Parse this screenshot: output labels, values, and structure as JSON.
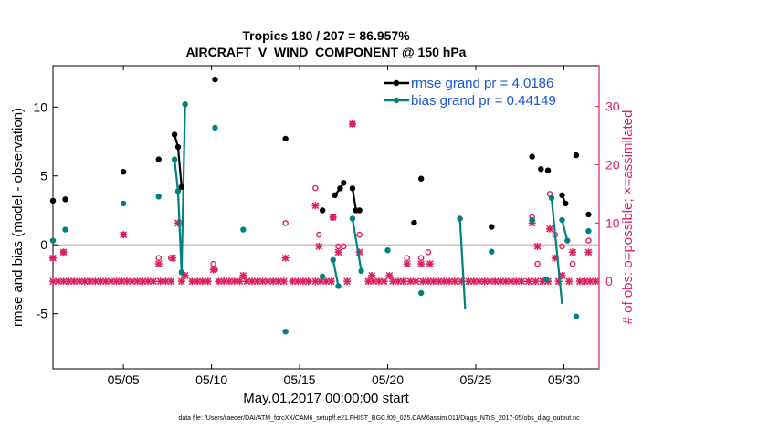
{
  "chart_data": {
    "type": "scatter",
    "title": "Tropics 180 / 207 = 86.957%",
    "subtitle": "AIRCRAFT_V_WIND_COMPONENT @ 150 hPa",
    "xlabel": "May.01,2017 00:00:00 start",
    "ylabel_left": "rmse and bias (model - observation)",
    "ylabel_right": "# of obs: o=possible; ×=assimilated",
    "footnote": "data file: /Users/raeder/DAI/ATM_forcXX/CAM6_setup/f.e21.FHIST_BGC.f09_025.CAM6assim.011/Diags_NTrS_2017-05/obs_diag_output.nc",
    "xlim": [
      1,
      32
    ],
    "ylim_left": [
      -9,
      13
    ],
    "ylim_right": [
      -15,
      37
    ],
    "grid": false,
    "legend_position": "top-right",
    "x_ticks": [
      5,
      10,
      15,
      20,
      25,
      30
    ],
    "x_tick_labels": [
      "05/05",
      "05/10",
      "05/15",
      "05/20",
      "05/25",
      "05/30"
    ],
    "y_left_ticks": [
      -5,
      0,
      5,
      10
    ],
    "y_right_ticks": [
      0,
      10,
      20,
      30
    ],
    "colors": {
      "rmse": "#000000",
      "bias": "#008080",
      "obs": "#e01e5a",
      "zero_line": "#c8a0a0"
    },
    "legend": [
      {
        "key": "rmse",
        "label": "rmse grand pr = 4.0186"
      },
      {
        "key": "bias",
        "label": "bias grand pr = 0.44149"
      }
    ],
    "rmse_points": [
      [
        1.0,
        3.2
      ],
      [
        1.7,
        3.3
      ],
      [
        5.0,
        5.3
      ],
      [
        7.0,
        6.2
      ],
      [
        7.9,
        8.0
      ],
      [
        8.1,
        7.1
      ],
      [
        8.3,
        4.2
      ],
      [
        10.2,
        12.0
      ],
      [
        14.2,
        7.7
      ],
      [
        16.3,
        2.5
      ],
      [
        17.0,
        3.6
      ],
      [
        17.3,
        4.1
      ],
      [
        17.5,
        4.5
      ],
      [
        18.0,
        4.1
      ],
      [
        18.2,
        2.5
      ],
      [
        18.4,
        2.5
      ],
      [
        21.5,
        1.6
      ],
      [
        21.9,
        4.8
      ],
      [
        25.9,
        1.3
      ],
      [
        28.2,
        6.4
      ],
      [
        28.7,
        5.5
      ],
      [
        29.1,
        5.4
      ],
      [
        29.9,
        3.6
      ],
      [
        30.1,
        3.0
      ],
      [
        30.7,
        6.5
      ],
      [
        31.4,
        2.2
      ]
    ],
    "rmse_segments": [
      [
        [
          7.9,
          8.0
        ],
        [
          8.1,
          7.1
        ],
        [
          8.3,
          4.2
        ]
      ],
      [
        [
          17.0,
          3.6
        ],
        [
          17.3,
          4.1
        ],
        [
          17.5,
          4.5
        ]
      ],
      [
        [
          18.0,
          4.1
        ],
        [
          18.2,
          2.5
        ],
        [
          18.4,
          2.5
        ]
      ],
      [
        [
          29.9,
          3.6
        ],
        [
          30.1,
          3.0
        ]
      ]
    ],
    "bias_points": [
      [
        1.0,
        0.3
      ],
      [
        1.7,
        1.1
      ],
      [
        5.0,
        3.0
      ],
      [
        7.0,
        3.5
      ],
      [
        7.9,
        6.2
      ],
      [
        8.1,
        3.9
      ],
      [
        8.3,
        -2.0
      ],
      [
        8.5,
        10.2
      ],
      [
        10.2,
        8.5
      ],
      [
        11.8,
        1.1
      ],
      [
        14.2,
        -6.3
      ],
      [
        16.3,
        -2.3
      ],
      [
        16.9,
        -1.1
      ],
      [
        17.2,
        -3.0
      ],
      [
        18.0,
        1.9
      ],
      [
        18.5,
        -1.9
      ],
      [
        20.0,
        -0.4
      ],
      [
        21.9,
        -3.5
      ],
      [
        24.1,
        1.9
      ],
      [
        25.9,
        -0.5
      ],
      [
        28.2,
        1.8
      ],
      [
        29.0,
        -2.5
      ],
      [
        29.3,
        3.4
      ],
      [
        29.9,
        1.8
      ],
      [
        30.2,
        0.3
      ],
      [
        30.7,
        -5.2
      ],
      [
        31.4,
        1.0
      ]
    ],
    "bias_segments": [
      [
        [
          7.9,
          6.2
        ],
        [
          8.1,
          3.9
        ],
        [
          8.3,
          -2.0
        ],
        [
          8.5,
          10.2
        ]
      ],
      [
        [
          16.9,
          -1.1
        ],
        [
          17.2,
          -3.0
        ]
      ],
      [
        [
          18.0,
          1.9
        ],
        [
          18.5,
          -1.9
        ]
      ],
      [
        [
          24.1,
          1.9
        ],
        [
          24.4,
          -4.7
        ]
      ],
      [
        [
          29.3,
          3.4
        ],
        [
          29.9,
          -4.3
        ]
      ],
      [
        [
          29.9,
          1.8
        ],
        [
          30.2,
          0.3
        ]
      ]
    ],
    "obs_possible": [
      [
        1.0,
        4
      ],
      [
        1.6,
        5
      ],
      [
        5.0,
        8
      ],
      [
        7.0,
        4
      ],
      [
        7.7,
        4
      ],
      [
        8.2,
        10
      ],
      [
        10.1,
        3
      ],
      [
        10.2,
        2
      ],
      [
        14.2,
        10
      ],
      [
        15.9,
        16
      ],
      [
        16.1,
        8
      ],
      [
        16.9,
        11
      ],
      [
        17.2,
        6
      ],
      [
        17.5,
        6
      ],
      [
        18.0,
        27
      ],
      [
        18.4,
        8
      ],
      [
        21.1,
        4
      ],
      [
        21.9,
        4
      ],
      [
        22.3,
        5
      ],
      [
        28.2,
        11
      ],
      [
        28.5,
        3
      ],
      [
        29.2,
        15
      ],
      [
        29.5,
        8
      ],
      [
        29.9,
        6
      ],
      [
        30.5,
        3
      ],
      [
        31.4,
        7
      ]
    ],
    "obs_assimilated": [
      [
        1.0,
        4
      ],
      [
        1.6,
        5
      ],
      [
        5.0,
        8
      ],
      [
        7.0,
        3
      ],
      [
        7.8,
        4
      ],
      [
        8.1,
        10
      ],
      [
        8.5,
        1
      ],
      [
        10.1,
        2
      ],
      [
        11.8,
        1
      ],
      [
        14.2,
        4
      ],
      [
        15.9,
        13
      ],
      [
        16.1,
        6
      ],
      [
        16.9,
        11
      ],
      [
        17.2,
        5
      ],
      [
        18.0,
        27
      ],
      [
        18.4,
        5
      ],
      [
        19.1,
        1
      ],
      [
        20.1,
        1
      ],
      [
        21.1,
        3
      ],
      [
        21.9,
        3
      ],
      [
        22.4,
        3
      ],
      [
        28.2,
        10
      ],
      [
        28.5,
        6
      ],
      [
        29.2,
        9
      ],
      [
        29.5,
        4
      ],
      [
        29.9,
        1
      ],
      [
        30.5,
        5
      ],
      [
        31.4,
        5
      ]
    ],
    "obs_zero_days": [
      1.0,
      1.3,
      1.6,
      1.9,
      2.2,
      2.5,
      2.8,
      3.1,
      3.4,
      3.7,
      4.0,
      4.3,
      4.6,
      4.9,
      5.2,
      5.5,
      5.8,
      6.1,
      6.4,
      6.7,
      7.1,
      7.4,
      7.7,
      8.3,
      8.9,
      9.2,
      9.5,
      9.8,
      10.4,
      10.7,
      11.0,
      11.3,
      11.6,
      12.0,
      12.3,
      12.6,
      12.9,
      13.2,
      13.5,
      13.8,
      14.1,
      14.6,
      14.9,
      15.2,
      15.5,
      15.9,
      16.2,
      16.5,
      16.8,
      17.7,
      18.9,
      19.2,
      19.5,
      19.8,
      20.3,
      20.6,
      20.9,
      21.3,
      21.6,
      22.0,
      22.3,
      22.6,
      22.9,
      23.2,
      23.5,
      23.8,
      24.2,
      24.6,
      24.9,
      25.2,
      25.5,
      25.8,
      26.1,
      26.4,
      26.7,
      27.0,
      27.3,
      27.6,
      28.0,
      28.4,
      28.8,
      29.1,
      29.7,
      30.3,
      30.9,
      31.2,
      31.5,
      31.8
    ]
  }
}
